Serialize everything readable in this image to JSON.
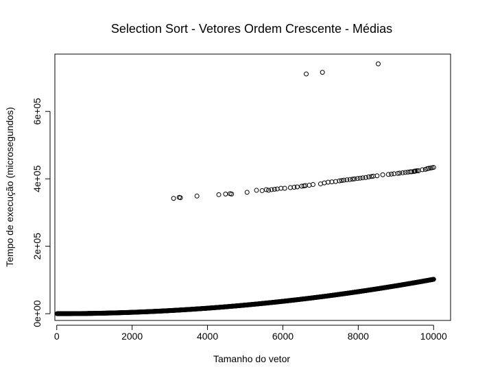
{
  "chart_data": {
    "type": "scatter",
    "title": "Selection Sort - Vetores Ordem Crescente - Médias",
    "xlabel": "Tamanho do vetor",
    "ylabel": "Tempo de execução (microsegundos)",
    "xlim": [
      -50,
      10450
    ],
    "ylim": [
      -20000,
      770000
    ],
    "xticks": [
      0,
      2000,
      4000,
      6000,
      8000,
      10000
    ],
    "xtick_labels": [
      "0",
      "2000",
      "4000",
      "6000",
      "8000",
      "10000"
    ],
    "yticks": [
      0,
      200000,
      400000,
      600000
    ],
    "ytick_labels": [
      "0e+00",
      "2e+05",
      "4e+05",
      "6e+05"
    ],
    "grid": false,
    "series": [
      {
        "description_of_main_curve": "dense curve y ≈ 1.02e-3 * x^2 for x in 10..10000 step 10",
        "x_start": 10,
        "x_end": 10000,
        "x_step": 10,
        "coef": 0.00102,
        "points": []
      }
    ],
    "outliers_middle_band": [
      [
        3100,
        342000
      ],
      [
        3250,
        345000
      ],
      [
        3280,
        344000
      ],
      [
        3720,
        349000
      ],
      [
        4300,
        353000
      ],
      [
        4480,
        355000
      ],
      [
        4600,
        356000
      ],
      [
        4640,
        355000
      ],
      [
        5050,
        360000
      ],
      [
        5300,
        366000
      ],
      [
        5450,
        365000
      ],
      [
        5560,
        368000
      ],
      [
        5620,
        366000
      ],
      [
        5700,
        368000
      ],
      [
        5780,
        369000
      ],
      [
        5850,
        370000
      ],
      [
        5950,
        372000
      ],
      [
        6050,
        372000
      ],
      [
        6200,
        374000
      ],
      [
        6300,
        375000
      ],
      [
        6380,
        376000
      ],
      [
        6500,
        378000
      ],
      [
        6560,
        379000
      ],
      [
        6600,
        380000
      ],
      [
        6700,
        381000
      ],
      [
        6800,
        383000
      ],
      [
        7000,
        385000
      ],
      [
        7100,
        388000
      ],
      [
        7200,
        390000
      ],
      [
        7300,
        391000
      ],
      [
        7400,
        392000
      ],
      [
        7500,
        394000
      ],
      [
        7560,
        395000
      ],
      [
        7620,
        396000
      ],
      [
        7700,
        397000
      ],
      [
        7780,
        398000
      ],
      [
        7850,
        399000
      ],
      [
        7900,
        400000
      ],
      [
        7980,
        401000
      ],
      [
        8050,
        402000
      ],
      [
        8120,
        403000
      ],
      [
        8200,
        404000
      ],
      [
        8280,
        406000
      ],
      [
        8350,
        407000
      ],
      [
        8400,
        408000
      ],
      [
        8500,
        409000
      ],
      [
        8650,
        412000
      ],
      [
        8800,
        413000
      ],
      [
        8880,
        414000
      ],
      [
        8950,
        415000
      ],
      [
        9050,
        416000
      ],
      [
        9100,
        417000
      ],
      [
        9180,
        418000
      ],
      [
        9250,
        419000
      ],
      [
        9320,
        420000
      ],
      [
        9380,
        421000
      ],
      [
        9420,
        421000
      ],
      [
        9480,
        422000
      ],
      [
        9500,
        423000
      ],
      [
        9520,
        423000
      ],
      [
        9560,
        424000
      ],
      [
        9600,
        424000
      ],
      [
        9700,
        427000
      ],
      [
        9780,
        428000
      ],
      [
        9830,
        430000
      ],
      [
        9870,
        431000
      ],
      [
        9920,
        432000
      ],
      [
        9960,
        433000
      ],
      [
        10000,
        434000
      ]
    ],
    "outliers_top": [
      [
        6620,
        711000
      ],
      [
        7050,
        716000
      ],
      [
        8530,
        741000
      ]
    ]
  }
}
